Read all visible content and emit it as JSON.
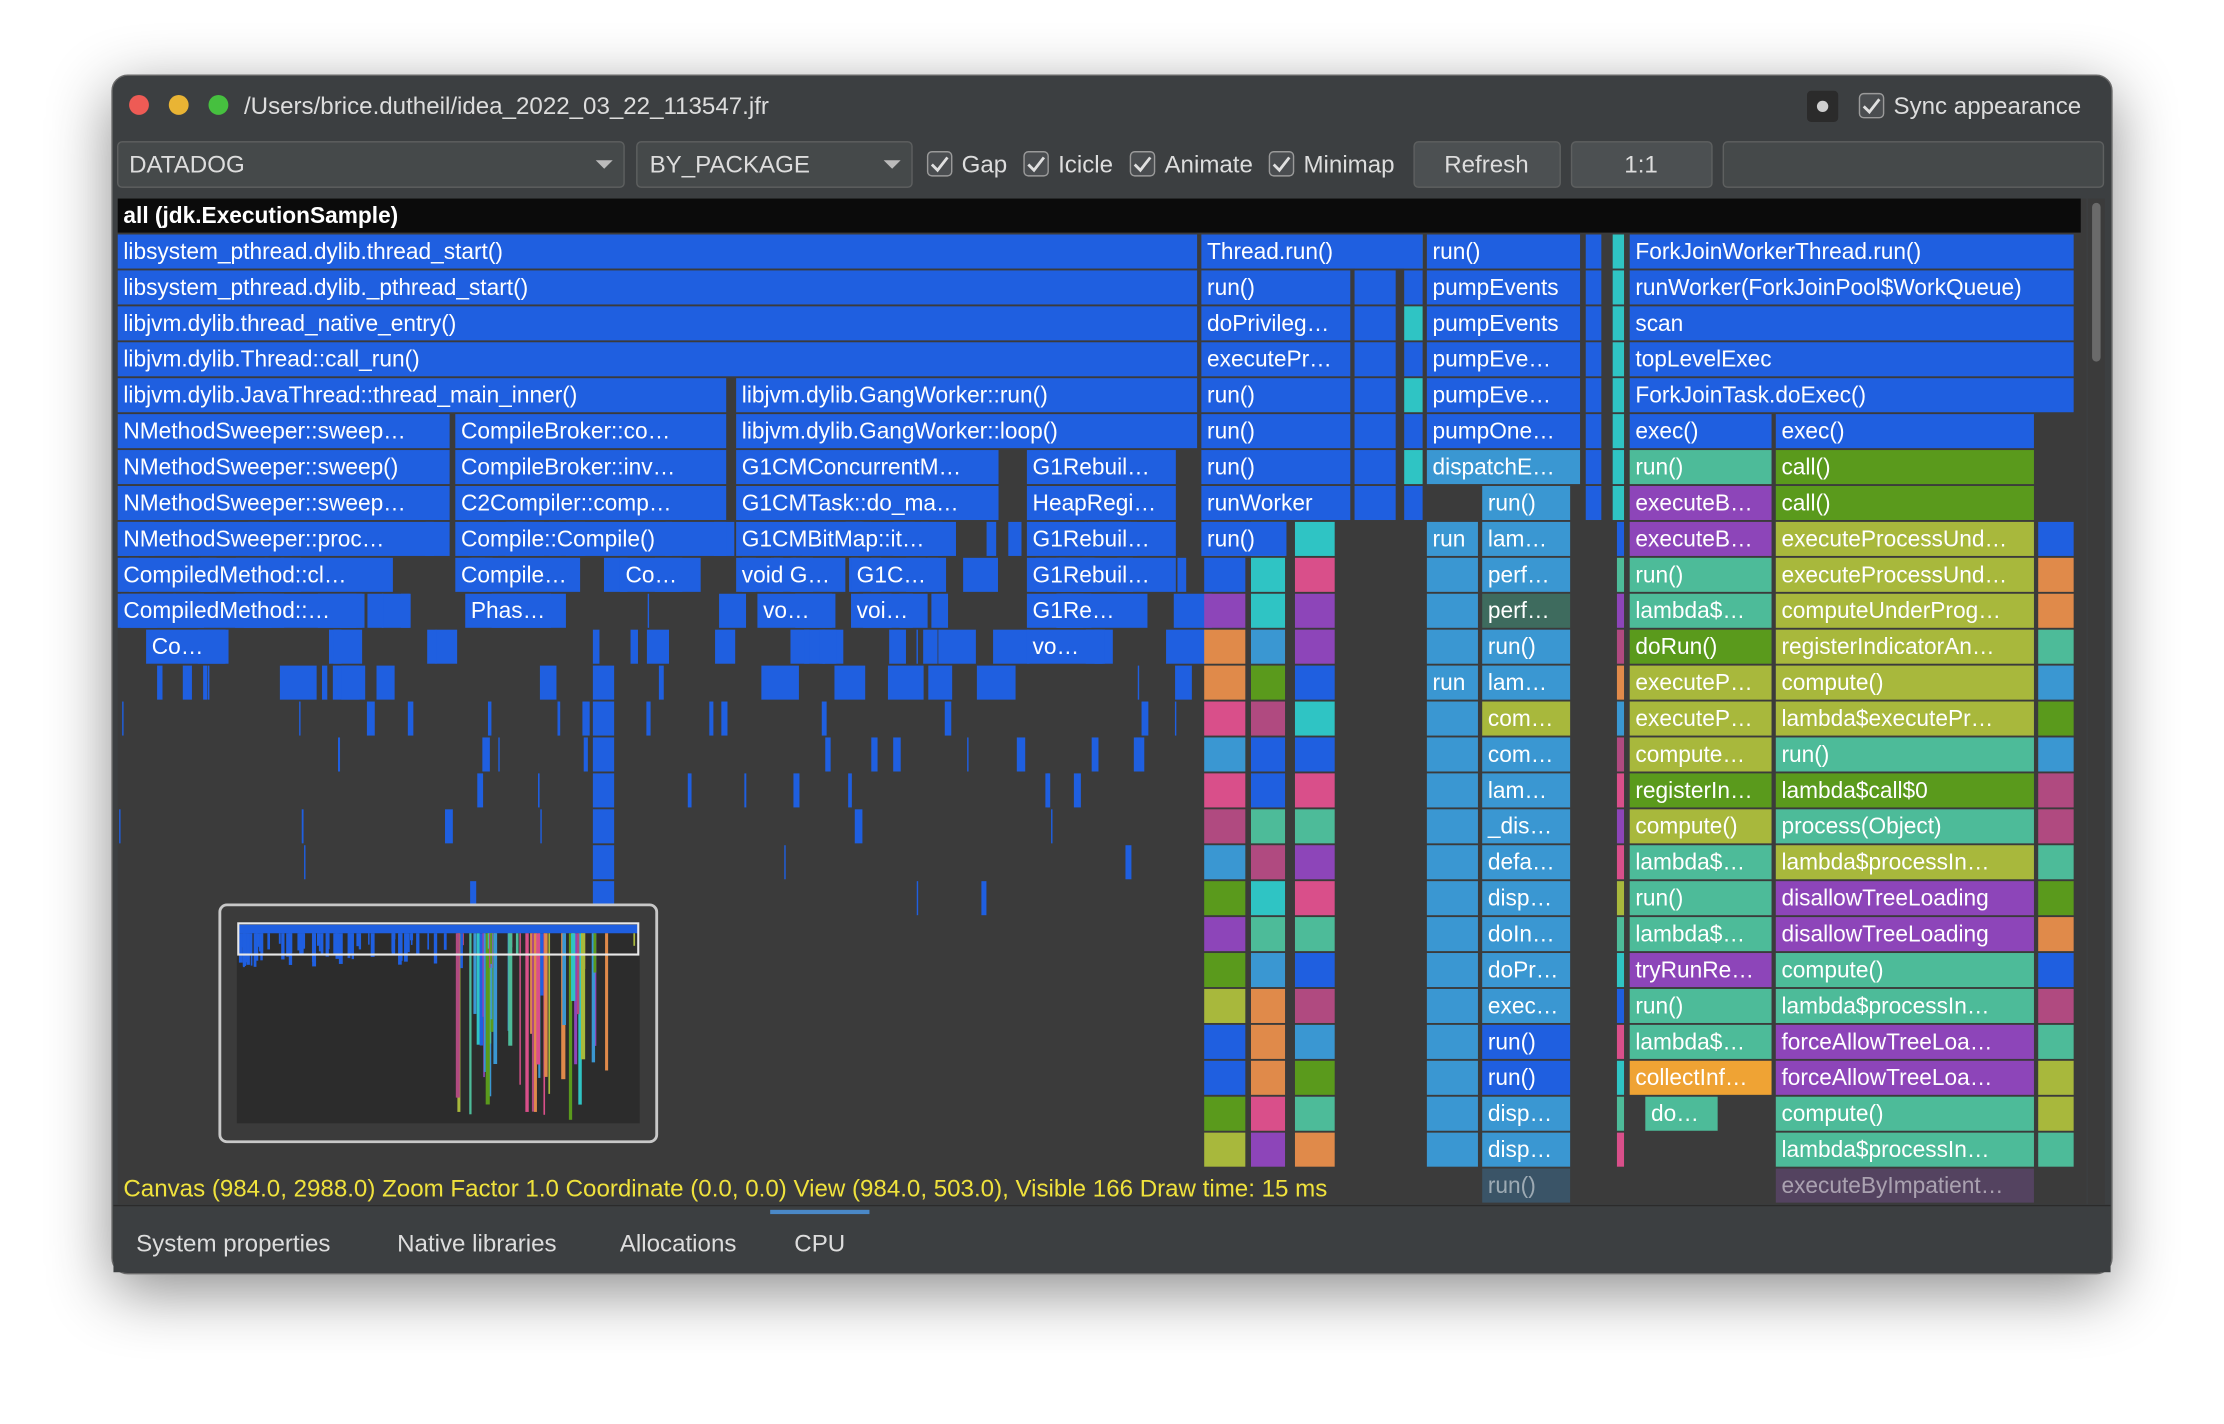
{
  "window": {
    "title": "/Users/brice.dutheil/idea_2022_03_22_113547.jfr",
    "sync_appearance": "Sync appearance"
  },
  "toolbar": {
    "source": "DATADOG",
    "grouping": "BY_PACKAGE",
    "options": [
      "Gap",
      "Icicle",
      "Animate",
      "Minimap"
    ],
    "refresh": "Refresh",
    "zoom": "1:1"
  },
  "flamegraph": {
    "rows": [
      [
        "all (jdk.ExecutionSample)"
      ],
      [
        "libsystem_pthread.dylib.thread_start()",
        "Thread.run()",
        "run()",
        "ForkJoinWorkerThread.run()"
      ],
      [
        "libsystem_pthread.dylib._pthread_start()",
        "run()",
        "pumpEvents",
        "runWorker(ForkJoinPool$WorkQueue)"
      ],
      [
        "libjvm.dylib.thread_native_entry()",
        "doPrivileg…",
        "pumpEvents",
        "scan"
      ],
      [
        "libjvm.dylib.Thread::call_run()",
        "executePr…",
        "pumpEve…",
        "topLevelExec"
      ],
      [
        "libjvm.dylib.JavaThread::thread_main_inner()",
        "libjvm.dylib.GangWorker::run()",
        "run()",
        "pumpEve…",
        "ForkJoinTask.doExec()"
      ],
      [
        "NMethodSweeper::sweep…",
        "CompileBroker::co…",
        "libjvm.dylib.GangWorker::loop()",
        "run()",
        "pumpOne…",
        "exec()",
        "exec()"
      ],
      [
        "NMethodSweeper::sweep()",
        "CompileBroker::inv…",
        "G1CMConcurrentM…",
        "G1Rebuil…",
        "run()",
        "dispatchE…",
        "run()",
        "call()"
      ],
      [
        "NMethodSweeper::sweep…",
        "C2Compiler::comp…",
        "G1CMTask::do_ma…",
        "HeapRegi…",
        "runWorker",
        "run()",
        "executeB…",
        "call()"
      ],
      [
        "NMethodSweeper::proc…",
        "Compile::Compile()",
        "G1CMBitMap::it…",
        "G1Rebuil…",
        "run()",
        "run",
        "lam…",
        "executeB…",
        "executeProcessUnd…"
      ],
      [
        "CompiledMethod::cl…",
        "Compile…",
        "Co…",
        "void G…",
        "G1C…",
        "G1Rebuil…",
        "perf…",
        "run()",
        "executeProcessUnd…"
      ],
      [
        "CompiledMethod::…",
        "Phas…",
        "vo…",
        "voi…",
        "G1Re…",
        "perf…",
        "lambda$…",
        "computeUnderProg…"
      ],
      [
        "Co…",
        "vo…",
        "run()",
        "doRun()",
        "registerIndicatorAn…"
      ],
      [
        "run",
        "lam…",
        "executeP…",
        "compute()"
      ],
      [
        "com…",
        "executeP…",
        "lambda$executePr…"
      ],
      [
        "com…",
        "compute…",
        "run()"
      ],
      [
        "lam…",
        "registerIn…",
        "lambda$call$0"
      ],
      [
        "_dis…",
        "compute()",
        "process(Object)"
      ],
      [
        "defa…",
        "lambda$…",
        "lambda$processIn…"
      ],
      [
        "disp…",
        "run()",
        "disallowTreeLoading"
      ],
      [
        "doIn…",
        "lambda$…",
        "disallowTreeLoading"
      ],
      [
        "doPr…",
        "tryRunRe…",
        "compute()"
      ],
      [
        "exec…",
        "run()",
        "lambda$processIn…"
      ],
      [
        "run()",
        "lambda$…",
        "forceAllowTreeLoa…"
      ],
      [
        "run()",
        "collectInf…",
        "forceAllowTreeLoa…"
      ],
      [
        "disp…",
        "do…",
        "compute()"
      ],
      [
        "disp…",
        "lambda$processIn…"
      ],
      [
        "run()",
        "executeByImpatient…"
      ]
    ]
  },
  "status": "Canvas (984.0, 2988.0) Zoom Factor 1.0 Coordinate (0.0, 0.0) View (984.0, 503.0), Visible 166 Draw time: 15 ms",
  "tabs": [
    "System properties",
    "Native libraries",
    "Allocations",
    "CPU"
  ]
}
